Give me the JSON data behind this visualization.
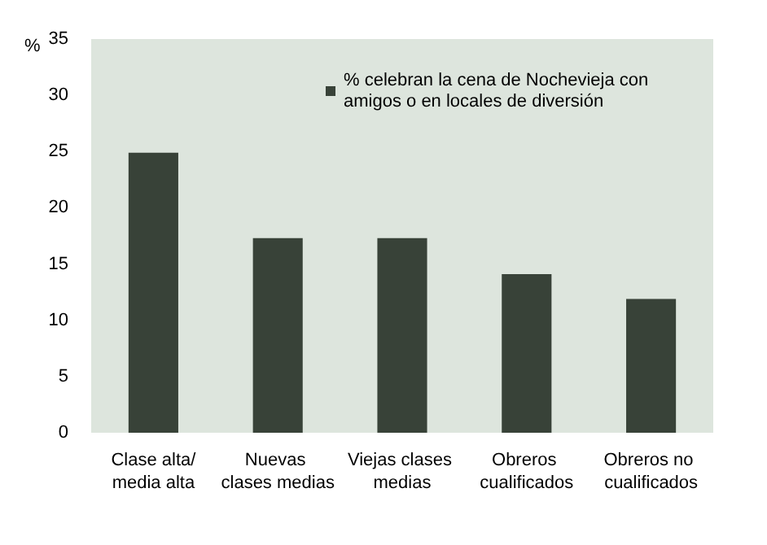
{
  "chart_data": {
    "type": "bar",
    "ylabel": "%",
    "categories": [
      "Clase alta/media alta",
      "Nuevas clases medias",
      "Viejas clases medias",
      "Obreros cualificados",
      "Obreros no cualificados"
    ],
    "series": [
      {
        "name": "% celebran la cena de Nochevieja con amigos o en locales de diversión",
        "color": "#384238",
        "values": [
          24.9,
          17.3,
          17.3,
          14.1,
          11.9
        ]
      }
    ],
    "ylim": [
      0,
      35
    ],
    "yticks": [
      0,
      5,
      10,
      15,
      20,
      25,
      30,
      35
    ],
    "grid": false,
    "legend": "top right"
  }
}
